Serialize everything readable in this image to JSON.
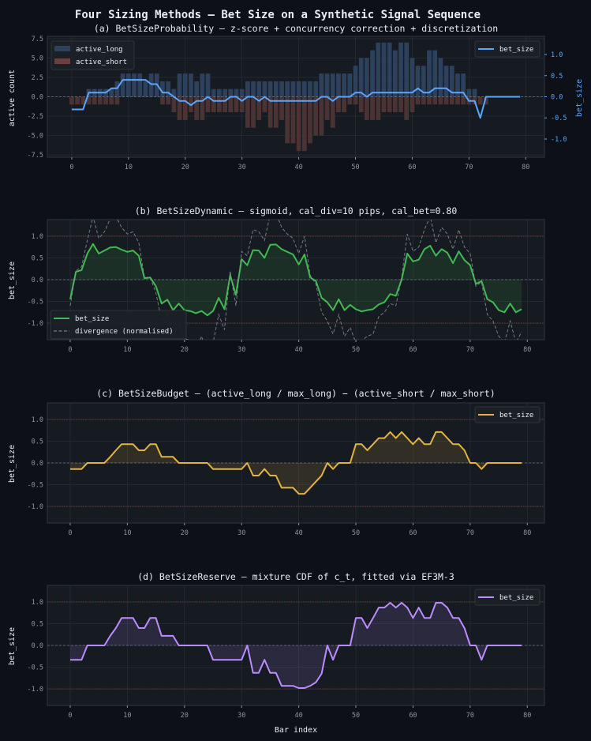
{
  "suptitle": "Four Sizing Methods — Bet Size on a Synthetic Signal Sequence",
  "colors": {
    "background": "#0d1117",
    "axes": "#161b22",
    "grid": "#2a313b",
    "long": "#2d405c",
    "short": "#4b3334",
    "probability": "#58a6ff",
    "dynamic": "#3fb950",
    "budget": "#e3b341",
    "reserve": "#bc8cff",
    "divergence": "#8b949e",
    "limit": "#7a3b3b"
  },
  "chart_data": [
    {
      "type": "bar+line",
      "title": "(a)  BetSizeProbability  —  z-score + concurrency correction + discretization",
      "xlabel": "",
      "ylabel": "active count",
      "ylabel_right": "bet_size",
      "xlim": [
        -4.3,
        83.3
      ],
      "ylim": [
        -7.8,
        7.8
      ],
      "ylim_right": [
        -1.43,
        1.43
      ],
      "xticks": [
        0,
        10,
        20,
        30,
        40,
        50,
        60,
        70,
        80
      ],
      "yticks": [
        "7.5",
        "5.0",
        "2.5",
        "0.0",
        "-2.5",
        "-5.0",
        "-7.5"
      ],
      "yticks_right": [
        "1.0",
        "0.5",
        "0.0",
        "-0.5",
        "-1.0"
      ],
      "grid": true,
      "legend_left": [
        "active_long",
        "active_short"
      ],
      "legend_right": [
        "bet_size"
      ],
      "x_start": 0,
      "series": [
        {
          "name": "active_long",
          "kind": "bar",
          "values": [
            0,
            0,
            0,
            1,
            1,
            1,
            1,
            1,
            2,
            3,
            3,
            3,
            3,
            2,
            3,
            3,
            2,
            2,
            1,
            3,
            3,
            3,
            2,
            3,
            3,
            1,
            1,
            1,
            1,
            1,
            1,
            2,
            2,
            2,
            2,
            2,
            2,
            2,
            2,
            2,
            2,
            2,
            2,
            2,
            3,
            3,
            3,
            3,
            3,
            3,
            4,
            5,
            5,
            6,
            7,
            7,
            7,
            6,
            7,
            7,
            5,
            4,
            4,
            6,
            6,
            5,
            4,
            4,
            3,
            3,
            1,
            1,
            0,
            0,
            0,
            0,
            0,
            0,
            0,
            0
          ]
        },
        {
          "name": "active_short",
          "kind": "bar",
          "values": [
            -1,
            -1,
            -1,
            -1,
            -1,
            -1,
            -1,
            -1,
            -1,
            0,
            0,
            0,
            0,
            0,
            0,
            0,
            -1,
            -1,
            -2,
            -3,
            -3,
            -2,
            -3,
            -3,
            -2,
            -2,
            -2,
            -2,
            -2,
            -2,
            -2,
            -4,
            -4,
            -3,
            -2,
            -4,
            -4,
            -3,
            -6,
            -6,
            -7,
            -7,
            -6,
            -5,
            -5,
            -3,
            -4,
            -2,
            -2,
            -1,
            -1,
            -2,
            -3,
            -3,
            -3,
            -2,
            -2,
            -2,
            -2,
            -3,
            -2,
            -1,
            -1,
            -1,
            -1,
            -1,
            -1,
            -1,
            -1,
            -1,
            -1,
            -1,
            -1,
            -1,
            0,
            0,
            0,
            0,
            0,
            0
          ]
        },
        {
          "name": "bet_size",
          "kind": "line",
          "axis": "right",
          "values": [
            -0.3,
            -0.3,
            -0.3,
            0.1,
            0.1,
            0.1,
            0.1,
            0.2,
            0.2,
            0.4,
            0.4,
            0.4,
            0.4,
            0.4,
            0.3,
            0.3,
            0.1,
            0.1,
            0.0,
            -0.1,
            -0.1,
            -0.2,
            -0.1,
            -0.1,
            0.0,
            -0.1,
            -0.1,
            -0.1,
            0.0,
            0.0,
            -0.1,
            0.0,
            0.0,
            -0.1,
            0.0,
            -0.1,
            -0.1,
            -0.1,
            -0.1,
            -0.1,
            -0.1,
            -0.1,
            -0.1,
            -0.1,
            0.0,
            0.0,
            -0.1,
            0.0,
            0.0,
            0.0,
            0.1,
            0.1,
            0.0,
            0.1,
            0.1,
            0.1,
            0.1,
            0.1,
            0.1,
            0.1,
            0.1,
            0.2,
            0.1,
            0.1,
            0.2,
            0.2,
            0.2,
            0.1,
            0.1,
            0.1,
            -0.1,
            -0.1,
            -0.5,
            0.0,
            0.0,
            0.0,
            0.0,
            0.0,
            0.0,
            0.0
          ]
        }
      ]
    },
    {
      "type": "line",
      "title": "(b)  BetSizeDynamic  —  sigmoid, cal_div=10 pips, cal_bet=0.80",
      "xlabel": "",
      "ylabel": "bet_size",
      "xlim": [
        -4,
        83
      ],
      "ylim": [
        -1.38,
        1.38
      ],
      "xticks": [
        0,
        10,
        20,
        30,
        40,
        50,
        60,
        70,
        80
      ],
      "yticks": [
        "1.0",
        "0.5",
        "0.0",
        "-0.5",
        "-1.0"
      ],
      "grid": true,
      "limits": [
        1.0,
        -1.0
      ],
      "legend": [
        "bet_size",
        "divergence (normalised)"
      ],
      "legend_placement": "lower-left",
      "series": [
        {
          "name": "bet_size",
          "values": [
            -0.45,
            0.18,
            0.22,
            0.6,
            0.82,
            0.6,
            0.67,
            0.74,
            0.75,
            0.69,
            0.64,
            0.67,
            0.55,
            0.03,
            0.05,
            -0.15,
            -0.55,
            -0.46,
            -0.7,
            -0.55,
            -0.7,
            -0.72,
            -0.77,
            -0.72,
            -0.82,
            -0.72,
            -0.42,
            -0.68,
            0.1,
            -0.35,
            0.47,
            0.33,
            0.68,
            0.67,
            0.5,
            0.8,
            0.81,
            0.7,
            0.64,
            0.58,
            0.35,
            0.58,
            0.05,
            -0.03,
            -0.42,
            -0.52,
            -0.7,
            -0.45,
            -0.7,
            -0.58,
            -0.68,
            -0.73,
            -0.7,
            -0.68,
            -0.57,
            -0.52,
            -0.33,
            -0.37,
            0.0,
            0.6,
            0.42,
            0.46,
            0.7,
            0.78,
            0.55,
            0.7,
            0.62,
            0.38,
            0.65,
            0.45,
            0.33,
            -0.1,
            -0.03,
            -0.45,
            -0.52,
            -0.7,
            -0.75,
            -0.55,
            -0.75,
            -0.68
          ]
        },
        {
          "name": "divergence (normalised)",
          "dashed": true,
          "values": [
            -0.6,
            0.2,
            0.3,
            0.9,
            1.45,
            0.95,
            1.1,
            1.4,
            1.45,
            1.2,
            1.05,
            1.1,
            0.85,
            0.05,
            0.05,
            -0.3,
            -0.95,
            -0.8,
            -1.3,
            -1.0,
            -1.35,
            -1.4,
            -1.6,
            -1.3,
            -1.75,
            -1.45,
            -0.8,
            -1.15,
            0.2,
            -0.6,
            0.65,
            0.55,
            1.15,
            1.1,
            0.9,
            1.5,
            1.55,
            1.2,
            1.05,
            0.95,
            0.6,
            1.0,
            0.1,
            -0.1,
            -0.75,
            -0.95,
            -1.25,
            -0.8,
            -1.3,
            -1.1,
            -1.45,
            -1.4,
            -1.3,
            -1.25,
            -0.85,
            -0.75,
            -0.55,
            -0.6,
            0.05,
            1.05,
            0.65,
            0.75,
            1.15,
            1.45,
            0.85,
            1.2,
            1.05,
            0.7,
            1.15,
            0.75,
            0.6,
            -0.15,
            -0.05,
            -0.8,
            -0.95,
            -1.3,
            -1.45,
            -0.95,
            -1.45,
            -1.2
          ]
        }
      ]
    },
    {
      "type": "line",
      "title": "(c)  BetSizeBudget  —  (active_long / max_long) − (active_short / max_short)",
      "xlabel": "",
      "ylabel": "bet_size",
      "xlim": [
        -4,
        83
      ],
      "ylim": [
        -1.38,
        1.38
      ],
      "xticks": [
        0,
        10,
        20,
        30,
        40,
        50,
        60,
        70,
        80
      ],
      "yticks": [
        "1.0",
        "0.5",
        "0.0",
        "-0.5",
        "-1.0"
      ],
      "grid": true,
      "limits": [
        1.0,
        -1.0
      ],
      "legend": [
        "bet_size"
      ],
      "legend_placement": "upper-right",
      "series": [
        {
          "name": "bet_size",
          "values": [
            -0.14,
            -0.14,
            -0.14,
            0,
            0,
            0,
            0,
            0.14,
            0.29,
            0.43,
            0.43,
            0.43,
            0.29,
            0.29,
            0.43,
            0.43,
            0.14,
            0.14,
            0.14,
            0,
            0,
            0,
            0,
            0,
            0,
            -0.14,
            -0.14,
            -0.14,
            -0.14,
            -0.14,
            -0.14,
            0,
            -0.29,
            -0.29,
            -0.14,
            -0.29,
            -0.29,
            -0.57,
            -0.57,
            -0.57,
            -0.71,
            -0.71,
            -0.57,
            -0.43,
            -0.29,
            0,
            -0.14,
            0,
            0,
            0,
            0.43,
            0.43,
            0.29,
            0.43,
            0.57,
            0.57,
            0.71,
            0.57,
            0.71,
            0.57,
            0.43,
            0.57,
            0.43,
            0.43,
            0.71,
            0.71,
            0.57,
            0.43,
            0.43,
            0.29,
            0,
            0,
            -0.14,
            0,
            0,
            0,
            0,
            0,
            0,
            0
          ]
        }
      ]
    },
    {
      "type": "line",
      "title": "(d)  BetSizeReserve  —  mixture CDF of c_t, fitted via EF3M-3",
      "xlabel": "Bar index",
      "ylabel": "bet_size",
      "xlim": [
        -4,
        83
      ],
      "ylim": [
        -1.38,
        1.38
      ],
      "xticks": [
        0,
        10,
        20,
        30,
        40,
        50,
        60,
        70,
        80
      ],
      "yticks": [
        "1.0",
        "0.5",
        "0.0",
        "-0.5",
        "-1.0"
      ],
      "grid": true,
      "limits": [
        1.0,
        -1.0
      ],
      "legend": [
        "bet_size"
      ],
      "legend_placement": "upper-right",
      "series": [
        {
          "name": "bet_size",
          "values": [
            -0.33,
            -0.33,
            -0.33,
            0,
            0,
            0,
            0,
            0.22,
            0.4,
            0.63,
            0.63,
            0.63,
            0.4,
            0.4,
            0.63,
            0.63,
            0.22,
            0.22,
            0.22,
            0,
            0,
            0,
            0,
            0,
            0,
            -0.33,
            -0.33,
            -0.33,
            -0.33,
            -0.33,
            -0.33,
            0,
            -0.63,
            -0.63,
            -0.33,
            -0.63,
            -0.63,
            -0.93,
            -0.93,
            -0.93,
            -0.98,
            -0.98,
            -0.93,
            -0.85,
            -0.65,
            0,
            -0.33,
            0,
            0,
            0,
            0.63,
            0.63,
            0.4,
            0.63,
            0.87,
            0.87,
            0.98,
            0.87,
            0.98,
            0.87,
            0.63,
            0.87,
            0.63,
            0.63,
            0.98,
            0.98,
            0.87,
            0.63,
            0.63,
            0.4,
            0,
            0,
            -0.33,
            0,
            0,
            0,
            0,
            0,
            0,
            0
          ]
        }
      ]
    }
  ]
}
